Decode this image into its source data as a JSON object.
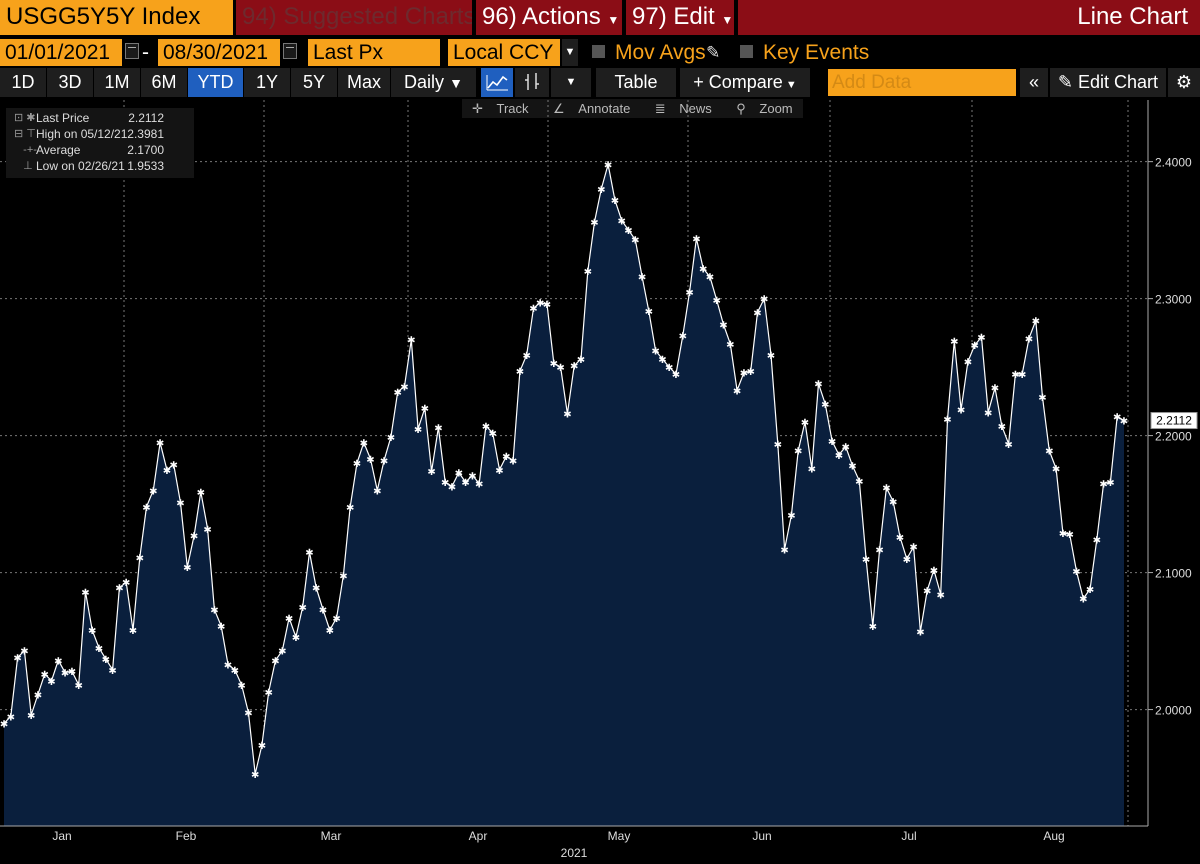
{
  "toolbar": {
    "ticker": "USGG5Y5Y Index",
    "suggested": "94) Suggested Charts",
    "actions": "96) Actions",
    "edit": "97) Edit",
    "chart_title": "Line Chart",
    "start_date": "01/01/2021",
    "date_sep": "-",
    "end_date": "08/30/2021",
    "field": "Last Px",
    "currency": "Local CCY",
    "mov_avgs": "Mov Avgs",
    "key_events": "Key Events",
    "periods": [
      "1D",
      "3D",
      "1M",
      "6M",
      "YTD",
      "1Y",
      "5Y",
      "Max"
    ],
    "active_period": "YTD",
    "frequency": "Daily",
    "table": "Table",
    "compare": "Compare",
    "add_data_placeholder": "Add Data",
    "edit_chart": "Edit Chart",
    "track": "Track",
    "annotate": "Annotate",
    "news": "News",
    "zoom": "Zoom"
  },
  "legend": {
    "last_label": "Last Price",
    "last_value": "2.2112",
    "high_label": "High on 05/12/21",
    "high_value": "2.3981",
    "avg_label": "Average",
    "avg_value": "2.1700",
    "low_label": "Low on 02/26/21",
    "low_value": "1.9533"
  },
  "colors": {
    "orange": "#f7a21b",
    "red": "#8b0d16",
    "active_tab": "#1f5fbf",
    "fill": "#0a1f3d",
    "line": "#ffffff"
  },
  "chart_data": {
    "type": "area",
    "title": "",
    "xlabel": "2021",
    "ylabel": "",
    "ylim": [
      1.915,
      2.445
    ],
    "yticks": [
      "2.0000",
      "2.1000",
      "2.2000",
      "2.3000",
      "2.4000"
    ],
    "month_labels": [
      "Jan",
      "Feb",
      "Mar",
      "Apr",
      "May",
      "Jun",
      "Jul",
      "Aug"
    ],
    "last_price_label": "2.2112",
    "series": [
      {
        "values": [
          1.99,
          1.995,
          2.038,
          2.043,
          1.996,
          2.011,
          2.026,
          2.021,
          2.036,
          2.027,
          2.028,
          2.018,
          2.086,
          2.058,
          2.045,
          2.037,
          2.029,
          2.089,
          2.093,
          2.058,
          2.111,
          2.148,
          2.16,
          2.195,
          2.175,
          2.179,
          2.151,
          2.104,
          2.127,
          2.159,
          2.132,
          2.073,
          2.061,
          2.033,
          2.029,
          2.018,
          1.998,
          1.953,
          1.974,
          2.013,
          2.036,
          2.043,
          2.067,
          2.053,
          2.075,
          2.115,
          2.089,
          2.073,
          2.058,
          2.067,
          2.098,
          2.148,
          2.18,
          2.195,
          2.183,
          2.16,
          2.182,
          2.199,
          2.232,
          2.236,
          2.27,
          2.205,
          2.22,
          2.174,
          2.206,
          2.166,
          2.163,
          2.173,
          2.166,
          2.171,
          2.165,
          2.207,
          2.202,
          2.175,
          2.185,
          2.182,
          2.247,
          2.259,
          2.293,
          2.297,
          2.296,
          2.253,
          2.25,
          2.216,
          2.251,
          2.256,
          2.32,
          2.356,
          2.38,
          2.398,
          2.372,
          2.357,
          2.35,
          2.343,
          2.316,
          2.291,
          2.262,
          2.256,
          2.25,
          2.245,
          2.273,
          2.305,
          2.344,
          2.322,
          2.316,
          2.299,
          2.281,
          2.267,
          2.233,
          2.246,
          2.247,
          2.29,
          2.3,
          2.259,
          2.194,
          2.117,
          2.142,
          2.189,
          2.21,
          2.176,
          2.238,
          2.223,
          2.196,
          2.186,
          2.192,
          2.178,
          2.167,
          2.11,
          2.061,
          2.117,
          2.162,
          2.152,
          2.126,
          2.11,
          2.119,
          2.057,
          2.087,
          2.102,
          2.084,
          2.212,
          2.269,
          2.219,
          2.254,
          2.266,
          2.272,
          2.217,
          2.235,
          2.207,
          2.194,
          2.245,
          2.245,
          2.271,
          2.284,
          2.228,
          2.189,
          2.176,
          2.129,
          2.128,
          2.101,
          2.081,
          2.088,
          2.124,
          2.165,
          2.166,
          2.214,
          2.211
        ]
      }
    ]
  }
}
